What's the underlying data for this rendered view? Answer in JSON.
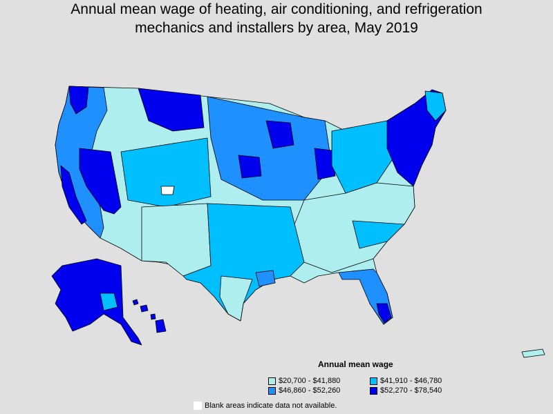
{
  "title": {
    "line1": "Annual mean wage of heating, air conditioning, and refrigeration",
    "line2": "mechanics and installers by area, May 2019"
  },
  "legend": {
    "title": "Annual mean wage",
    "items": [
      {
        "label": "$20,700 - $41,880",
        "color": "#aeeeee"
      },
      {
        "label": "$41,910 - $46,780",
        "color": "#00bfff"
      },
      {
        "label": "$46,860 - $52,260",
        "color": "#1e90ff"
      },
      {
        "label": "$52,270 - $78,540",
        "color": "#0000ee"
      }
    ]
  },
  "note": "Blank areas indicate data not available.",
  "colors": {
    "background": "#e0e0e0",
    "blank": "#ffffff",
    "border": "#000000"
  }
}
